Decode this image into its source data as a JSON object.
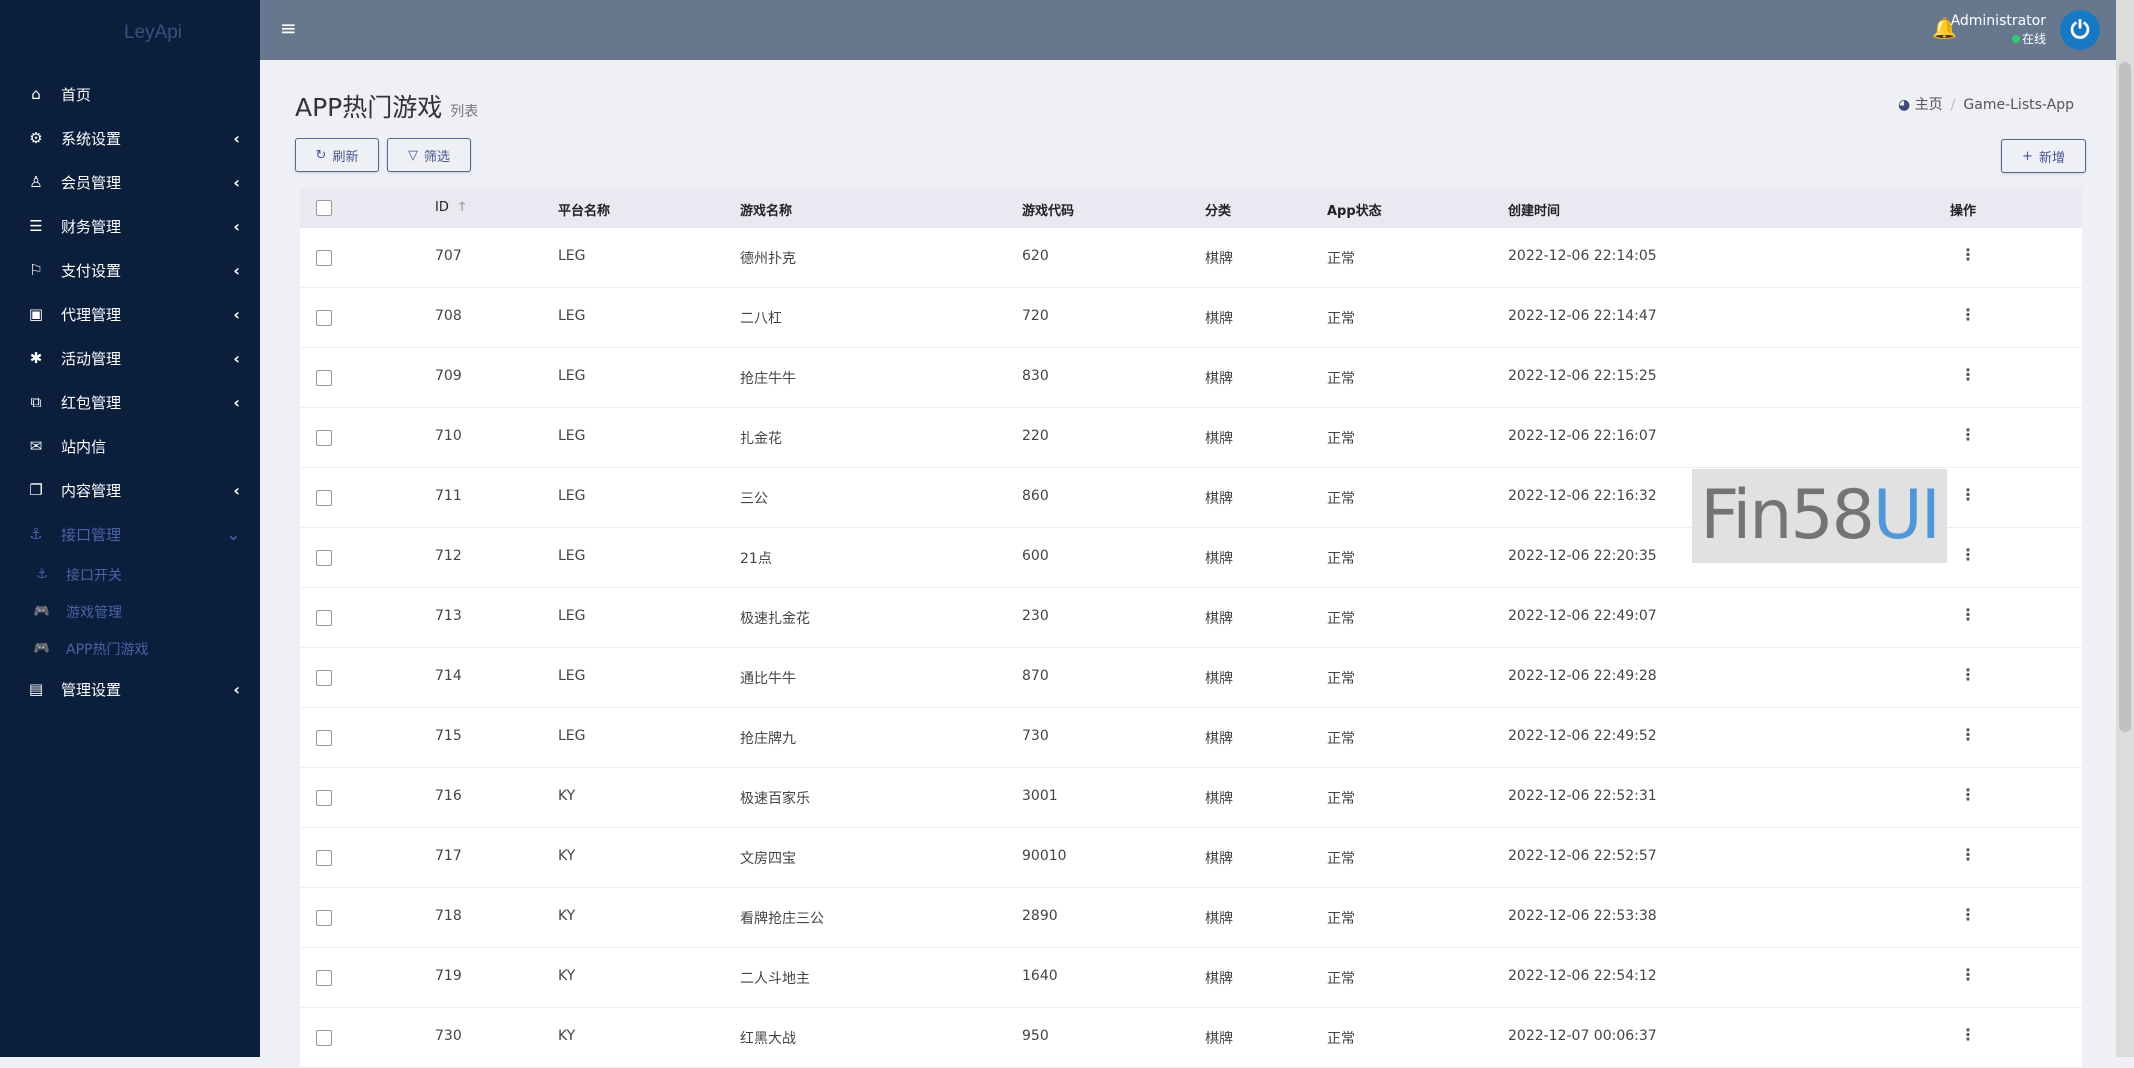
{
  "sidebar": {
    "logo": "LeyApi",
    "items": [
      {
        "label": "首页",
        "icon": "⌂",
        "chev": ""
      },
      {
        "label": "系统设置",
        "icon": "⚙",
        "chev": "‹"
      },
      {
        "label": "会员管理",
        "icon": "♙",
        "chev": "‹"
      },
      {
        "label": "财务管理",
        "icon": "☰",
        "chev": "‹"
      },
      {
        "label": "支付设置",
        "icon": "⚐",
        "chev": "‹"
      },
      {
        "label": "代理管理",
        "icon": "▣",
        "chev": "‹"
      },
      {
        "label": "活动管理",
        "icon": "✱",
        "chev": "‹"
      },
      {
        "label": "红包管理",
        "icon": "⧉",
        "chev": "‹"
      },
      {
        "label": "站内信",
        "icon": "✉",
        "chev": ""
      },
      {
        "label": "内容管理",
        "icon": "❐",
        "chev": "‹"
      },
      {
        "label": "接口管理",
        "icon": "⚓",
        "chev": "⌄"
      }
    ],
    "sub_items": [
      {
        "label": "接口开关",
        "icon": "⚓"
      },
      {
        "label": "游戏管理",
        "icon": "🎮"
      },
      {
        "label": "APP热门游戏",
        "icon": "🎮"
      }
    ],
    "last_item": {
      "label": "管理设置",
      "icon": "▤",
      "chev": "‹"
    }
  },
  "header": {
    "menu_icon": "≡",
    "bell_icon": "🔔",
    "user_name": "Administrator",
    "status": "在线",
    "avatar_icon": "⏻"
  },
  "page": {
    "title": "APP热门游戏",
    "subtitle": "列表",
    "breadcrumb_home": "主页",
    "breadcrumb_current": "Game-Lists-App"
  },
  "toolbar": {
    "refresh": "刷新",
    "refresh_icon": "↻",
    "filter": "筛选",
    "filter_icon": "▽",
    "add": "新增",
    "add_icon": "+"
  },
  "table": {
    "columns": [
      "ID",
      "平台名称",
      "游戏名称",
      "游戏代码",
      "分类",
      "App状态",
      "创建时间",
      "操作"
    ],
    "sort_icon": "↑",
    "rows": [
      [
        "707",
        "LEG",
        "德州扑克",
        "620",
        "棋牌",
        "正常",
        "2022-12-06 22:14:05"
      ],
      [
        "708",
        "LEG",
        "二八杠",
        "720",
        "棋牌",
        "正常",
        "2022-12-06 22:14:47"
      ],
      [
        "709",
        "LEG",
        "抢庄牛牛",
        "830",
        "棋牌",
        "正常",
        "2022-12-06 22:15:25"
      ],
      [
        "710",
        "LEG",
        "扎金花",
        "220",
        "棋牌",
        "正常",
        "2022-12-06 22:16:07"
      ],
      [
        "711",
        "LEG",
        "三公",
        "860",
        "棋牌",
        "正常",
        "2022-12-06 22:16:32"
      ],
      [
        "712",
        "LEG",
        "21点",
        "600",
        "棋牌",
        "正常",
        "2022-12-06 22:20:35"
      ],
      [
        "713",
        "LEG",
        "极速扎金花",
        "230",
        "棋牌",
        "正常",
        "2022-12-06 22:49:07"
      ],
      [
        "714",
        "LEG",
        "通比牛牛",
        "870",
        "棋牌",
        "正常",
        "2022-12-06 22:49:28"
      ],
      [
        "715",
        "LEG",
        "抢庄牌九",
        "730",
        "棋牌",
        "正常",
        "2022-12-06 22:49:52"
      ],
      [
        "716",
        "KY",
        "极速百家乐",
        "3001",
        "棋牌",
        "正常",
        "2022-12-06 22:52:31"
      ],
      [
        "717",
        "KY",
        "文房四宝",
        "90010",
        "棋牌",
        "正常",
        "2022-12-06 22:52:57"
      ],
      [
        "718",
        "KY",
        "看牌抢庄三公",
        "2890",
        "棋牌",
        "正常",
        "2022-12-06 22:53:38"
      ],
      [
        "719",
        "KY",
        "二人斗地主",
        "1640",
        "棋牌",
        "正常",
        "2022-12-06 22:54:12"
      ],
      [
        "730",
        "KY",
        "红黑大战",
        "950",
        "棋牌",
        "正常",
        "2022-12-07 00:06:37"
      ]
    ]
  },
  "watermark": {
    "part1": "Fin58",
    "part2": "UI"
  }
}
